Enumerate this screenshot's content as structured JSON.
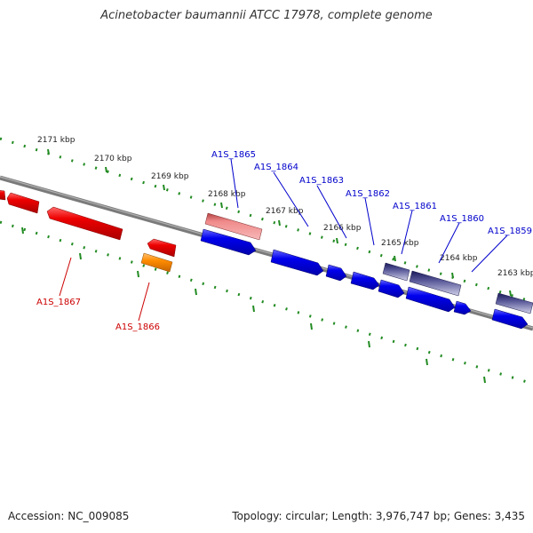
{
  "title": "Acinetobacter baumannii ATCC 17978, complete genome",
  "footer": {
    "accession": "Accession: NC_009085",
    "summary": "Topology: circular; Length: 3,976,747 bp; Genes: 3,435"
  },
  "tick_labels": [
    "2171 kbp",
    "2170 kbp",
    "2169 kbp",
    "2168 kbp",
    "2167 kbp",
    "2166 kbp",
    "2165 kbp",
    "2164 kbp",
    "2163 kbp"
  ],
  "genes": [
    {
      "label": "A1S_1867",
      "color": "#cc0000",
      "strand": "reverse"
    },
    {
      "label": "A1S_1866",
      "color": "#cc0000",
      "strand": "reverse"
    },
    {
      "label": "A1S_1865",
      "color": "#0000cc",
      "strand": "forward"
    },
    {
      "label": "A1S_1864",
      "color": "#0000cc",
      "strand": "forward"
    },
    {
      "label": "A1S_1863",
      "color": "#0000cc",
      "strand": "forward"
    },
    {
      "label": "A1S_1862",
      "color": "#0000cc",
      "strand": "forward"
    },
    {
      "label": "A1S_1861",
      "color": "#0000cc",
      "strand": "forward"
    },
    {
      "label": "A1S_1860",
      "color": "#0000cc",
      "strand": "forward"
    },
    {
      "label": "A1S_1859",
      "color": "#0000cc",
      "strand": "forward"
    }
  ],
  "colors": {
    "forward_cds": "#0000ee",
    "reverse_cds": "#ee0000",
    "orange_feature": "#ff8c00",
    "pink_feature": "#e87a7a",
    "purple_feature": "#4a4a8a",
    "backbone": "#808080",
    "ruler": "#228b22"
  }
}
